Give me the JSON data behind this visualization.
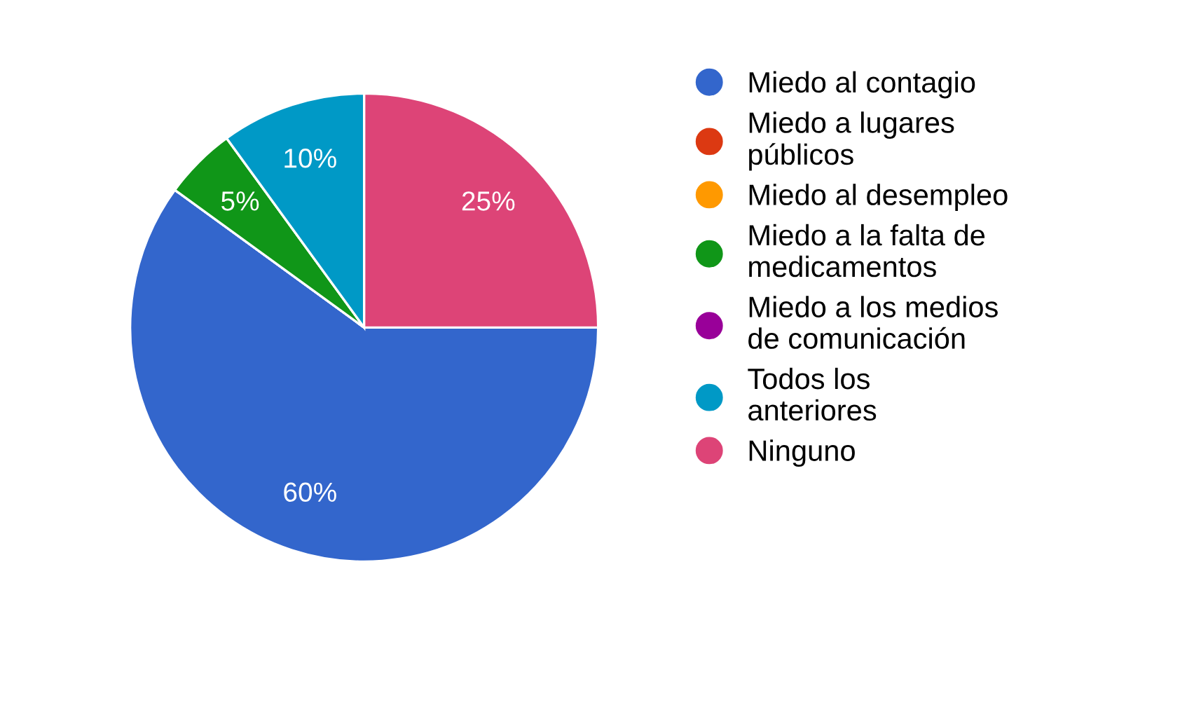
{
  "chart_data": {
    "type": "pie",
    "categories": [
      "Miedo al contagio",
      "Miedo a lugares públicos",
      "Miedo al desempleo",
      "Miedo a la falta de medicamentos",
      "Miedo a los medios de comunicación",
      "Todos los anteriores",
      "Ninguno"
    ],
    "values": [
      60,
      0,
      0,
      5,
      0,
      10,
      25
    ],
    "value_labels": [
      "60%",
      null,
      null,
      "5%",
      null,
      "10%",
      "25%"
    ],
    "colors": [
      "#3366cc",
      "#dc3912",
      "#ff9900",
      "#109618",
      "#990099",
      "#0099c6",
      "#dd4477"
    ],
    "legend": "right"
  }
}
